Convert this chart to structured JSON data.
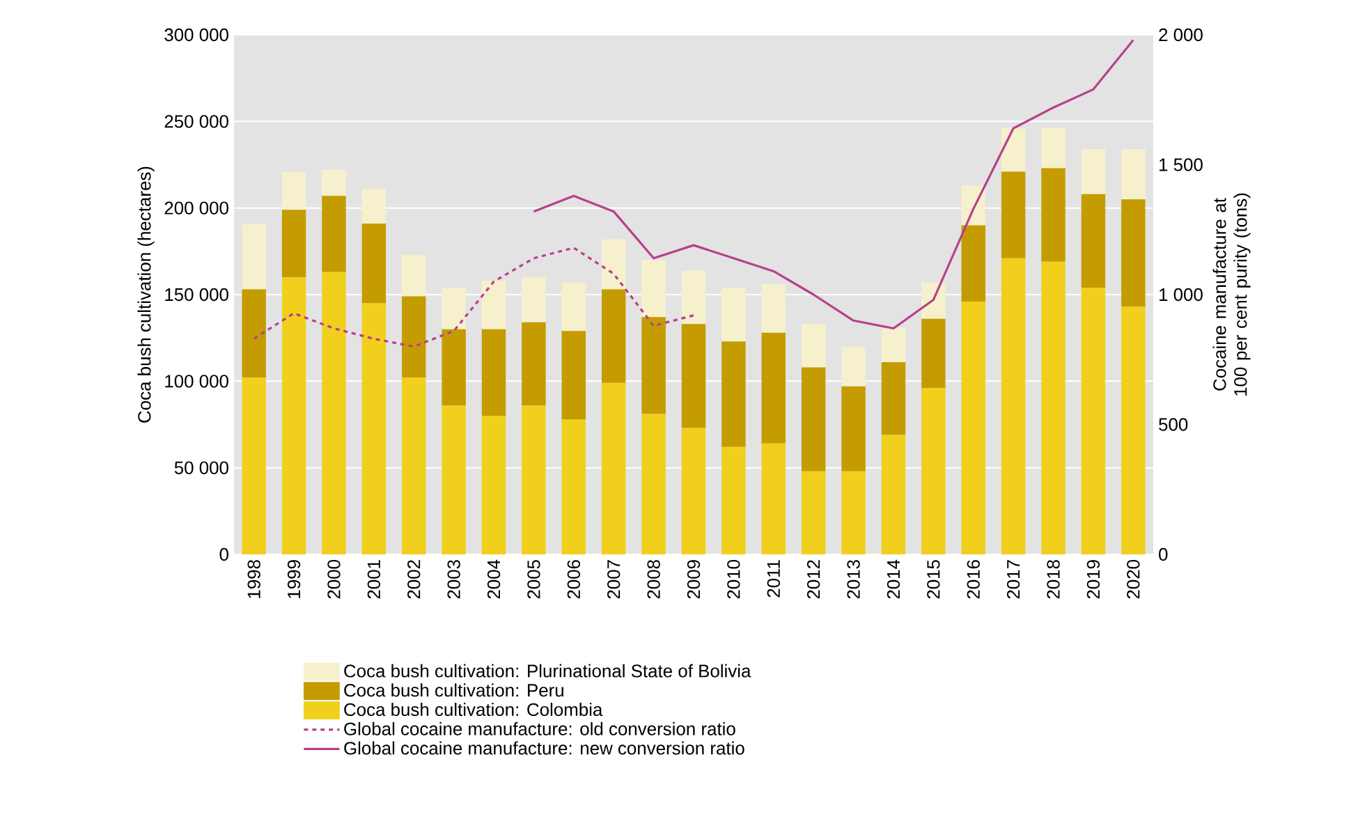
{
  "chart_data": {
    "type": "bar",
    "stacked": true,
    "ylabel": "Coca bush cultivation (hectares)",
    "y2label": "Cocaine manufacture at 100 per cent purity (tons)",
    "categories": [
      "1998",
      "1999",
      "2000",
      "2001",
      "2002",
      "2003",
      "2004",
      "2005",
      "2006",
      "2007",
      "2008",
      "2009",
      "2010",
      "2011",
      "2012",
      "2013",
      "2014",
      "2015",
      "2016",
      "2017",
      "2018",
      "2019",
      "2020"
    ],
    "series": [
      {
        "name": "Coca bush cultivation: Colombia",
        "color": "#f0d01c",
        "values": [
          102000,
          160000,
          163000,
          145000,
          102000,
          86000,
          80000,
          86000,
          78000,
          99000,
          81000,
          73000,
          62000,
          64000,
          48000,
          48000,
          69000,
          96000,
          146000,
          171000,
          169000,
          154000,
          143000
        ]
      },
      {
        "name": "Coca bush cultivation: Peru",
        "color": "#c49c00",
        "values": [
          51000,
          39000,
          44000,
          46000,
          47000,
          44000,
          50000,
          48000,
          51000,
          54000,
          56000,
          60000,
          61000,
          64000,
          60000,
          49000,
          42000,
          40000,
          44000,
          50000,
          54000,
          54000,
          62000
        ]
      },
      {
        "name": "Coca bush cultivation: Plurinational State of Bolivia",
        "color": "#f6f0cc",
        "values": [
          38000,
          22000,
          15000,
          20000,
          24000,
          24000,
          28000,
          26000,
          28000,
          29000,
          33000,
          31000,
          31000,
          28000,
          25000,
          23000,
          20000,
          21000,
          23000,
          25000,
          23000,
          26000,
          29000
        ]
      },
      {
        "name": "Global cocaine manufacture: old conversion ratio",
        "type": "line",
        "axis": "y2",
        "line_style": "dashed",
        "color": "#b8408c",
        "values": [
          831,
          928,
          870,
          830,
          800,
          860,
          1050,
          1140,
          1180,
          1080,
          880,
          920,
          null,
          null,
          null,
          null,
          null,
          null,
          null,
          null,
          null,
          null,
          null
        ]
      },
      {
        "name": "Global cocaine manufacture: new conversion ratio",
        "type": "line",
        "axis": "y2",
        "line_style": "solid",
        "color": "#b8408c",
        "values": [
          null,
          null,
          null,
          null,
          null,
          null,
          null,
          1320,
          1380,
          1320,
          1140,
          1190,
          1140,
          1090,
          1000,
          900,
          870,
          980,
          1330,
          1640,
          1720,
          1790,
          1980
        ]
      }
    ],
    "ylim": [
      0,
      300000
    ],
    "yticks": [
      0,
      {
        "value": 50000,
        "label": "50 000"
      },
      {
        "value": 100000,
        "label": "100 000"
      },
      {
        "value": 150000,
        "label": "150 000"
      },
      {
        "value": 200000,
        "label": "200 000"
      },
      {
        "value": 250000,
        "label": "250 000"
      },
      {
        "value": 300000,
        "label": "300 000"
      }
    ],
    "y2lim": [
      0,
      2000
    ],
    "y2ticks": [
      0,
      500,
      {
        "value": 1000,
        "label": "1 000"
      },
      {
        "value": 1500,
        "label": "1 500"
      },
      {
        "value": 2000,
        "label": "2 000"
      }
    ],
    "grid": "y",
    "legend": "bottom",
    "marker": "none"
  }
}
